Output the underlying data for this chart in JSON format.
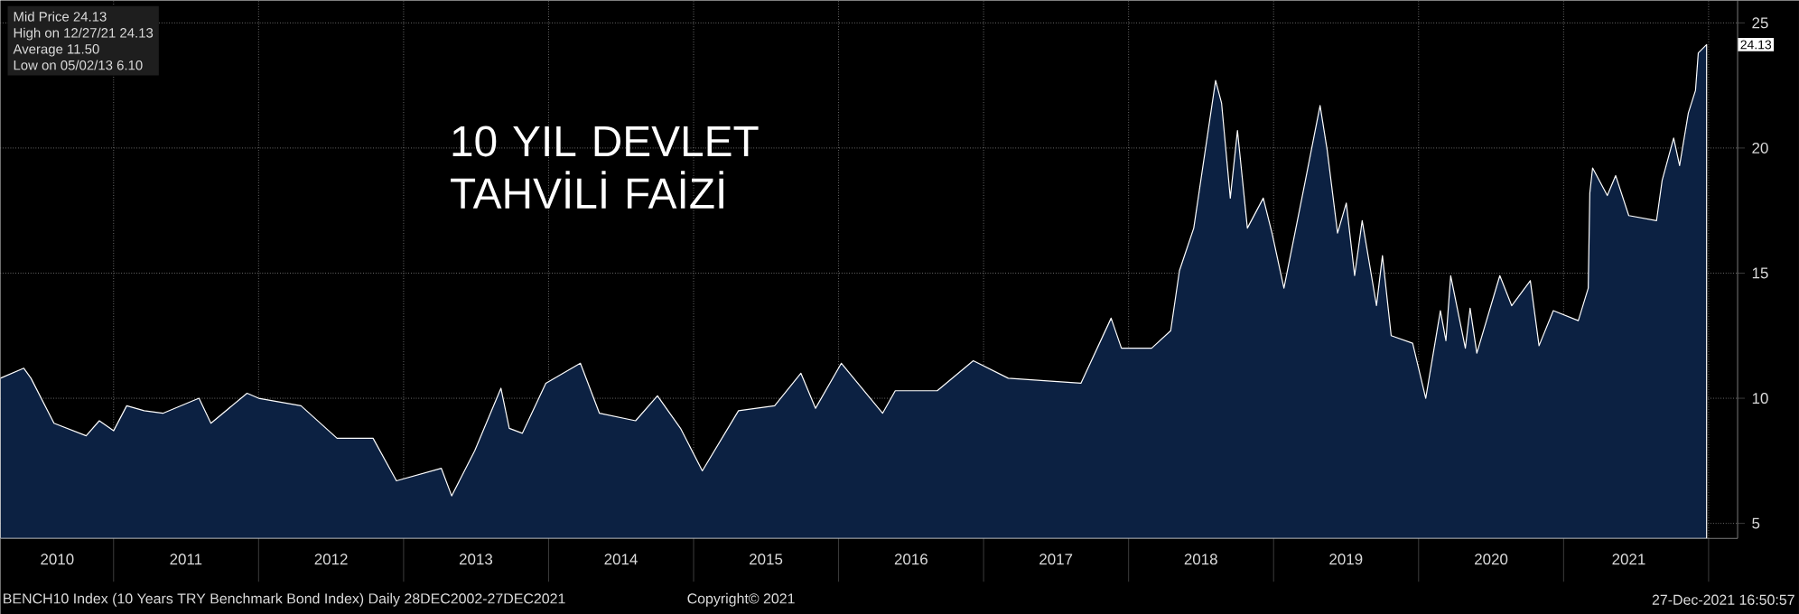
{
  "chart_data": {
    "type": "area",
    "title": "10 YIL DEVLET TAHVİLİ FAİZİ",
    "series": [
      {
        "color": "#0c2142",
        "x": [
          "2010-03-22",
          "2010-05-20",
          "2010-06-07",
          "2010-08-04",
          "2010-10-24",
          "2010-11-26",
          "2011-01-01",
          "2011-02-03",
          "2011-03-19",
          "2011-05-05",
          "2011-08-04",
          "2011-09-03",
          "2011-12-03",
          "2012-01-01",
          "2012-04-17",
          "2012-07-17",
          "2012-10-16",
          "2012-12-14",
          "2013-04-06",
          "2013-05-02",
          "2013-06-29",
          "2013-09-03",
          "2013-09-24",
          "2013-10-27",
          "2013-12-25",
          "2014-03-22",
          "2014-05-09",
          "2014-08-08",
          "2014-10-02",
          "2014-11-29",
          "2015-01-23",
          "2015-04-24",
          "2015-07-24",
          "2015-09-28",
          "2015-11-04",
          "2016-01-08",
          "2016-04-21",
          "2016-05-23",
          "2016-09-06",
          "2016-12-06",
          "2017-03-04",
          "2017-06-03",
          "2017-09-03",
          "2017-11-18",
          "2017-12-14",
          "2018-02-28",
          "2018-04-17",
          "2018-05-09",
          "2018-06-14",
          "2018-08-08",
          "2018-08-23",
          "2018-09-14",
          "2018-10-02",
          "2018-10-27",
          "2018-12-06",
          "2018-12-28",
          "2019-01-27",
          "2019-03-22",
          "2019-04-28",
          "2019-05-16",
          "2019-06-11",
          "2019-07-03",
          "2019-07-24",
          "2019-08-12",
          "2019-09-17",
          "2019-10-02",
          "2019-10-24",
          "2019-12-17",
          "2020-01-19",
          "2020-02-25",
          "2020-03-10",
          "2020-03-22",
          "2020-04-28",
          "2020-05-10",
          "2020-05-27",
          "2020-07-24",
          "2020-08-23",
          "2020-10-09",
          "2020-10-31",
          "2020-12-06",
          "2021-02-07",
          "2021-03-04",
          "2021-03-08",
          "2021-03-15",
          "2021-04-21",
          "2021-05-12",
          "2021-06-14",
          "2021-08-23",
          "2021-09-06",
          "2021-10-05",
          "2021-10-20",
          "2021-11-11",
          "2021-11-29",
          "2021-12-06",
          "2021-12-27"
        ],
        "values": [
          10.8,
          11.2,
          10.8,
          9.0,
          8.5,
          9.1,
          8.7,
          9.7,
          9.5,
          9.4,
          10.0,
          9.0,
          10.2,
          10.0,
          9.7,
          8.4,
          8.4,
          6.7,
          7.2,
          6.1,
          7.9,
          10.4,
          8.8,
          8.6,
          10.6,
          11.4,
          9.4,
          9.1,
          10.1,
          8.8,
          7.1,
          9.5,
          9.7,
          11.0,
          9.6,
          11.4,
          9.4,
          10.3,
          10.3,
          11.5,
          10.8,
          10.7,
          10.6,
          13.2,
          12.0,
          12.0,
          12.7,
          15.1,
          16.8,
          22.7,
          21.8,
          18.0,
          20.7,
          16.8,
          18.0,
          16.6,
          14.4,
          18.7,
          21.7,
          19.9,
          16.6,
          17.8,
          14.9,
          17.1,
          13.7,
          15.7,
          12.5,
          12.2,
          10.0,
          13.5,
          12.3,
          14.9,
          12.0,
          13.6,
          11.8,
          14.9,
          13.7,
          14.7,
          12.1,
          13.5,
          13.1,
          14.4,
          18.2,
          19.2,
          18.1,
          18.9,
          17.3,
          17.1,
          18.7,
          20.4,
          19.3,
          21.4,
          22.3,
          23.8,
          24.13
        ]
      }
    ],
    "xlim": [
      "2010-03-22",
      "2022-03-15"
    ],
    "ylim": [
      4.4,
      25.9
    ],
    "xticks": [
      {
        "value": "2011-01-01",
        "label": null
      },
      {
        "value": "2012-01-01",
        "label": null
      },
      {
        "value": "2013-01-01",
        "label": null
      },
      {
        "value": "2014-01-01",
        "label": null
      },
      {
        "value": "2015-01-01",
        "label": null
      },
      {
        "value": "2016-01-01",
        "label": null
      },
      {
        "value": "2017-01-01",
        "label": null
      },
      {
        "value": "2018-01-01",
        "label": null
      },
      {
        "value": "2019-01-01",
        "label": null
      },
      {
        "value": "2020-01-01",
        "label": null
      },
      {
        "value": "2021-01-01",
        "label": null
      },
      {
        "value": "2022-01-01",
        "label": null
      },
      {
        "value": "2010-08-12",
        "label": "2010"
      },
      {
        "value": "2011-07-02",
        "label": "2011"
      },
      {
        "value": "2012-07-02",
        "label": "2012"
      },
      {
        "value": "2013-07-02",
        "label": "2013"
      },
      {
        "value": "2014-07-02",
        "label": "2014"
      },
      {
        "value": "2015-07-02",
        "label": "2015"
      },
      {
        "value": "2016-07-02",
        "label": "2016"
      },
      {
        "value": "2017-07-02",
        "label": "2017"
      },
      {
        "value": "2018-07-02",
        "label": "2018"
      },
      {
        "value": "2019-07-02",
        "label": "2019"
      },
      {
        "value": "2020-07-02",
        "label": "2020"
      },
      {
        "value": "2021-06-14",
        "label": "2021"
      }
    ],
    "yticks": [
      5,
      10,
      15,
      20,
      25
    ],
    "grid": true,
    "annotations": [
      "Mid Price   24.13",
      "High on 12/27/21   24.13",
      "Average   11.50",
      "Low on 05/02/13   6.10",
      "BENCH10 Index (10 Years TRY Benchmark Bond Index)  Daily 28DEC2002-27DEC2021",
      "Copyright© 2021",
      "27-Dec-2021 16:50:57",
      {
        "text": "24.13",
        "x": "2021-12-27",
        "y": 24.13
      }
    ]
  }
}
